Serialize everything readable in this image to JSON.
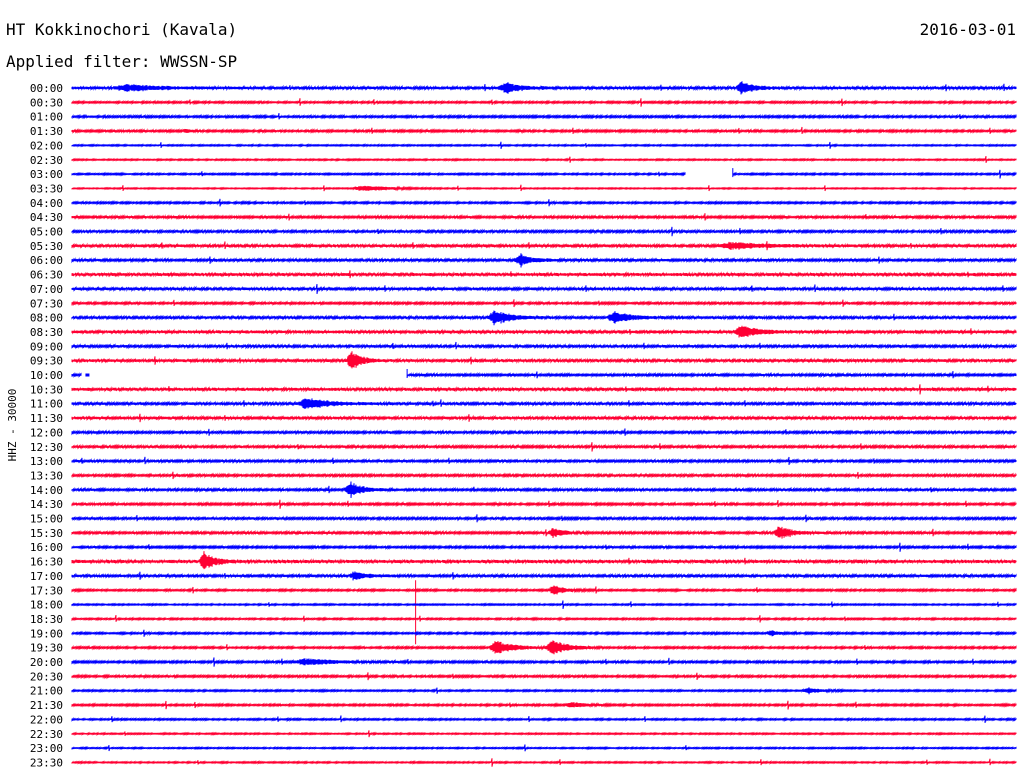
{
  "header": {
    "station": "HT Kokkinochori (Kavala)",
    "date": "2016-03-01",
    "filter": "Applied filter: WWSSN-SP"
  },
  "chart_data": {
    "type": "line",
    "title": "HT Kokkinochori (Kavala)",
    "subtitle": "Applied filter: WWSSN-SP",
    "ylabel": "HHZ - 30000",
    "colors": [
      "#0000ff",
      "#ff0033"
    ],
    "grid": false,
    "tick_labels": [
      "00:00",
      "00:30",
      "01:00",
      "01:30",
      "02:00",
      "02:30",
      "03:00",
      "03:30",
      "04:00",
      "04:30",
      "05:00",
      "05:30",
      "06:00",
      "06:30",
      "07:00",
      "07:30",
      "08:00",
      "08:30",
      "09:00",
      "09:30",
      "10:00",
      "10:30",
      "11:00",
      "11:30",
      "12:00",
      "12:30",
      "13:00",
      "13:30",
      "14:00",
      "14:30",
      "15:00",
      "15:30",
      "16:00",
      "16:30",
      "17:00",
      "17:30",
      "18:00",
      "18:30",
      "19:00",
      "19:30",
      "20:00",
      "20:30",
      "21:00",
      "21:30",
      "22:00",
      "22:30",
      "23:00",
      "23:30"
    ],
    "noise_levels": [
      1.2,
      0.8,
      0.9,
      0.9,
      0.6,
      0.6,
      0.7,
      0.5,
      0.8,
      1.0,
      1.0,
      1.2,
      1.1,
      1.3,
      1.2,
      0.9,
      1.1,
      1.3,
      1.1,
      1.2,
      1.0,
      1.3,
      1.1,
      1.2,
      1.0,
      1.0,
      1.0,
      1.0,
      1.0,
      0.9,
      1.0,
      1.0,
      0.9,
      1.4,
      1.1,
      0.8,
      0.6,
      0.7,
      0.8,
      0.8,
      0.9,
      0.9,
      0.7,
      0.8,
      0.7,
      0.6,
      0.6,
      0.6
    ],
    "events": [
      {
        "row": 0,
        "t": 0.46,
        "amp": 5,
        "width": 0.02
      },
      {
        "row": 0,
        "t": 0.71,
        "amp": 6,
        "width": 0.015
      },
      {
        "row": 0,
        "t": 0.06,
        "amp": 3,
        "width": 0.04
      },
      {
        "row": 3,
        "t": 0.12,
        "amp": 3,
        "width": 0.005
      },
      {
        "row": 7,
        "t": 0.31,
        "amp": 3,
        "width": 0.03
      },
      {
        "row": 11,
        "t": 0.7,
        "amp": 3,
        "width": 0.04
      },
      {
        "row": 12,
        "t": 0.475,
        "amp": 6,
        "width": 0.015
      },
      {
        "row": 16,
        "t": 0.448,
        "amp": 7,
        "width": 0.02
      },
      {
        "row": 16,
        "t": 0.575,
        "amp": 6,
        "width": 0.02
      },
      {
        "row": 17,
        "t": 0.71,
        "amp": 6,
        "width": 0.02
      },
      {
        "row": 19,
        "t": 0.296,
        "amp": 11,
        "width": 0.012
      },
      {
        "row": 22,
        "t": 0.25,
        "amp": 5,
        "width": 0.03
      },
      {
        "row": 28,
        "t": 0.295,
        "amp": 8,
        "width": 0.015
      },
      {
        "row": 31,
        "t": 0.51,
        "amp": 5,
        "width": 0.012
      },
      {
        "row": 31,
        "t": 0.75,
        "amp": 7,
        "width": 0.015
      },
      {
        "row": 33,
        "t": 0.14,
        "amp": 10,
        "width": 0.012
      },
      {
        "row": 34,
        "t": 0.3,
        "amp": 4,
        "width": 0.015
      },
      {
        "row": 35,
        "t": 0.51,
        "amp": 6,
        "width": 0.012
      },
      {
        "row": 38,
        "t": 0.74,
        "amp": 3,
        "width": 0.01
      },
      {
        "row": 39,
        "t": 0.45,
        "amp": 7,
        "width": 0.02
      },
      {
        "row": 39,
        "t": 0.51,
        "amp": 7,
        "width": 0.02
      },
      {
        "row": 40,
        "t": 0.25,
        "amp": 3,
        "width": 0.04
      },
      {
        "row": 42,
        "t": 0.78,
        "amp": 3,
        "width": 0.015
      },
      {
        "row": 43,
        "t": 0.53,
        "amp": 3,
        "width": 0.015
      }
    ],
    "gaps": [
      {
        "row": 6,
        "start": 0.65,
        "end": 0.7
      },
      {
        "row": 20,
        "start": 0.01,
        "end": 0.355
      }
    ],
    "spikes": [
      {
        "row": 35,
        "t": 0.364,
        "amp": 54
      }
    ]
  }
}
